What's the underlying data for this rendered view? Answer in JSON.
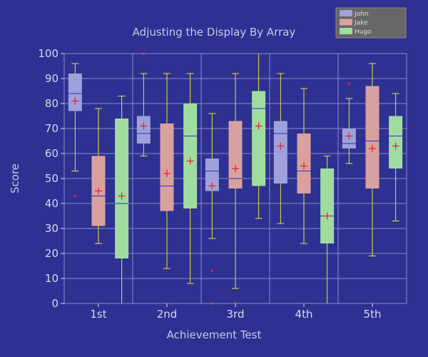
{
  "chart_data": {
    "type": "boxplot",
    "title": "Adjusting the Display By Array",
    "xlabel": "Achievement Test",
    "ylabel": "Score",
    "ylim": [
      0,
      100
    ],
    "yticks": [
      0,
      10,
      20,
      30,
      40,
      50,
      60,
      70,
      80,
      90,
      100
    ],
    "categories": [
      "1st",
      "2nd",
      "3rd",
      "4th",
      "5th"
    ],
    "grid": true,
    "legend_position": "top-right",
    "colors": {
      "background": "#2e3192",
      "grid": "#8a8cc6",
      "whisker": "#e6e632",
      "median": "#3030c0",
      "mean_marker": "#e61e1e",
      "outlier": "#e61e1e",
      "legend_bg": "#666666"
    },
    "series": [
      {
        "name": "John",
        "color": "#9fa0dc",
        "boxes": [
          {
            "min": 53,
            "q1": 77,
            "median": 84,
            "q3": 92,
            "max": 96,
            "mean": 81,
            "outliers": [
              43
            ]
          },
          {
            "min": 59,
            "q1": 64,
            "median": 68,
            "q3": 75,
            "max": 92,
            "mean": 71,
            "outliers": [
              100
            ]
          },
          {
            "min": 26,
            "q1": 45,
            "median": 53,
            "q3": 58,
            "max": 76,
            "mean": 47,
            "outliers": [
              13,
              0
            ]
          },
          {
            "min": 32,
            "q1": 48,
            "median": 68,
            "q3": 73,
            "max": 92,
            "mean": 63,
            "outliers": []
          },
          {
            "min": 56,
            "q1": 62,
            "median": 64,
            "q3": 70,
            "max": 82,
            "mean": 67,
            "outliers": [
              88
            ]
          }
        ]
      },
      {
        "name": "Jake",
        "color": "#d9a0a0",
        "boxes": [
          {
            "min": 24,
            "q1": 31,
            "median": 43,
            "q3": 59,
            "max": 78,
            "mean": 45,
            "outliers": []
          },
          {
            "min": 14,
            "q1": 37,
            "median": 47,
            "q3": 72,
            "max": 92,
            "mean": 52,
            "outliers": []
          },
          {
            "min": 6,
            "q1": 46,
            "median": 50,
            "q3": 73,
            "max": 92,
            "mean": 54,
            "outliers": [
              0
            ]
          },
          {
            "min": 24,
            "q1": 44,
            "median": 53,
            "q3": 68,
            "max": 86,
            "mean": 55,
            "outliers": []
          },
          {
            "min": 19,
            "q1": 46,
            "median": 65,
            "q3": 87,
            "max": 96,
            "mean": 62,
            "outliers": []
          }
        ]
      },
      {
        "name": "Hugo",
        "color": "#a0dca0",
        "boxes": [
          {
            "min": 0,
            "q1": 18,
            "median": 40,
            "q3": 74,
            "max": 83,
            "mean": 43,
            "outliers": []
          },
          {
            "min": 8,
            "q1": 38,
            "median": 67,
            "q3": 80,
            "max": 92,
            "mean": 57,
            "outliers": []
          },
          {
            "min": 34,
            "q1": 47,
            "median": 78,
            "q3": 85,
            "max": 100,
            "mean": 71,
            "outliers": []
          },
          {
            "min": 0,
            "q1": 24,
            "median": 35,
            "q3": 54,
            "max": 59,
            "mean": 35,
            "outliers": []
          },
          {
            "min": 33,
            "q1": 54,
            "median": 67,
            "q3": 75,
            "max": 84,
            "mean": 63,
            "outliers": []
          }
        ]
      }
    ]
  }
}
